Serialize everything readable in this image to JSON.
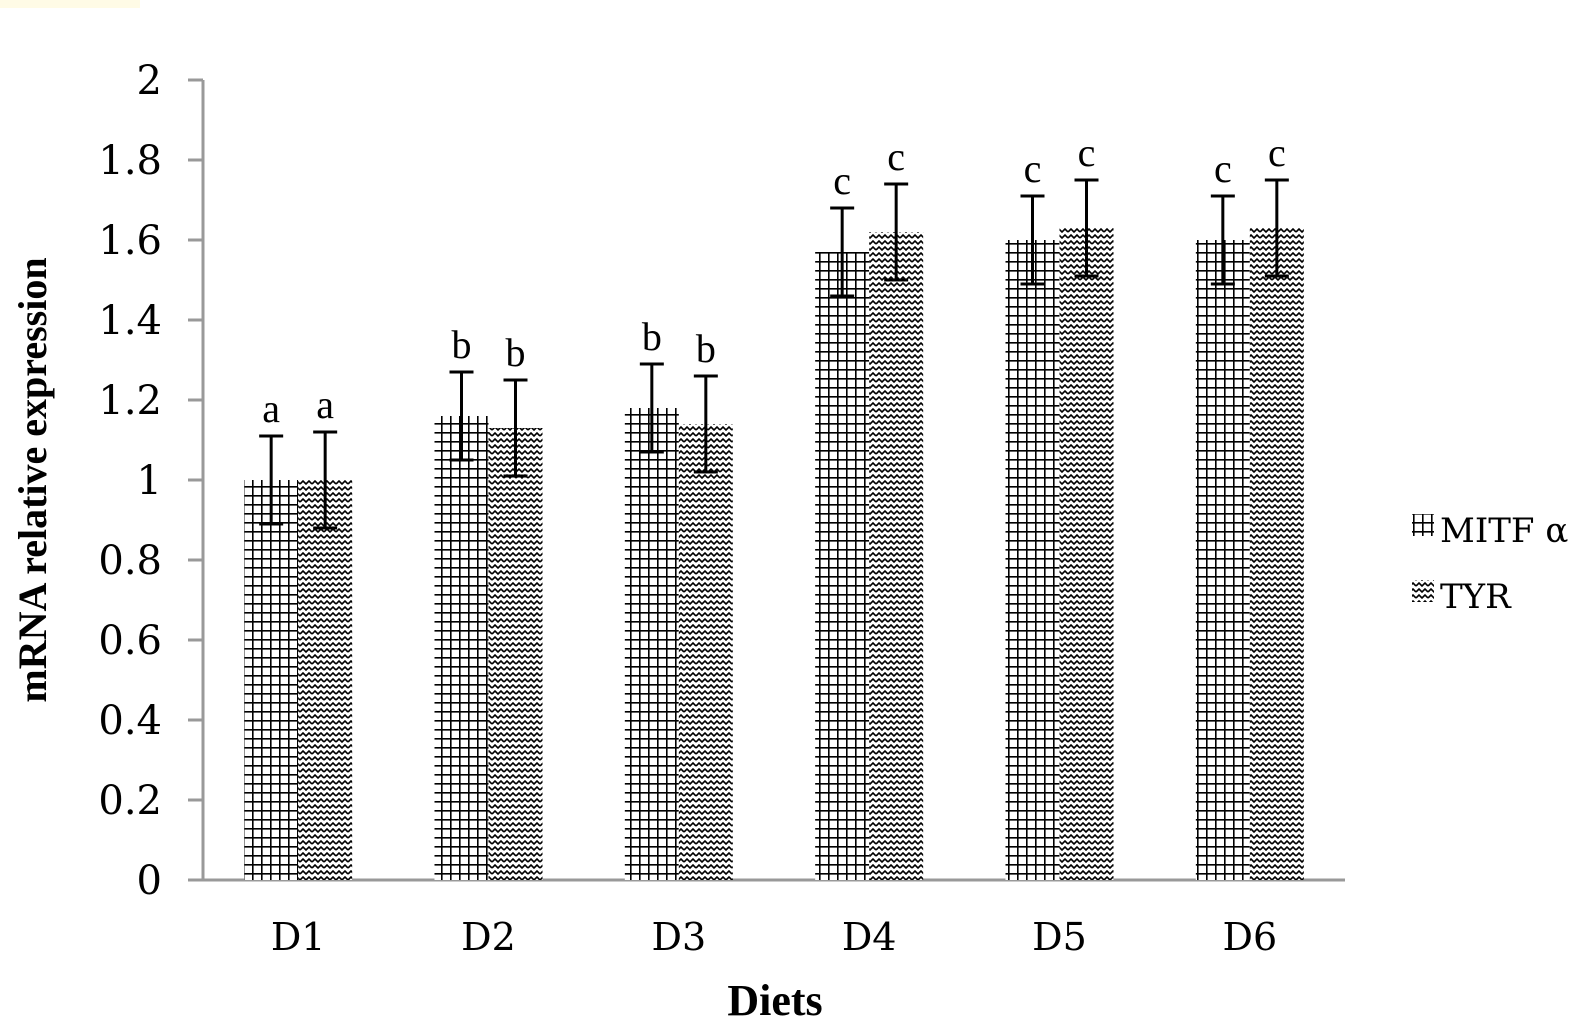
{
  "chart_data": {
    "type": "bar",
    "title": "",
    "xlabel": "Diets",
    "ylabel": "mRNA relative expression",
    "ylim": [
      0,
      2
    ],
    "yticks": [
      "0",
      "0.2",
      "0.4",
      "0.6",
      "0.8",
      "1",
      "1.2",
      "1.4",
      "1.6",
      "1.8",
      "2"
    ],
    "ytick_values": [
      0,
      0.2,
      0.4,
      0.6,
      0.8,
      1,
      1.2,
      1.4,
      1.6,
      1.8,
      2
    ],
    "categories": [
      "D1",
      "D2",
      "D3",
      "D4",
      "D5",
      "D6"
    ],
    "series": [
      {
        "name": "MITF α",
        "pattern": "grid",
        "values": [
          1.0,
          1.16,
          1.18,
          1.57,
          1.6,
          1.6
        ],
        "errors": [
          0.11,
          0.11,
          0.11,
          0.11,
          0.11,
          0.11
        ],
        "letters": [
          "a",
          "b",
          "b",
          "c",
          "c",
          "c"
        ]
      },
      {
        "name": "TYR",
        "pattern": "zigzag",
        "values": [
          1.0,
          1.13,
          1.14,
          1.62,
          1.63,
          1.63
        ],
        "errors": [
          0.12,
          0.12,
          0.12,
          0.12,
          0.12,
          0.12
        ],
        "letters": [
          "a",
          "b",
          "b",
          "c",
          "c",
          "c"
        ]
      }
    ],
    "legend_position": "right",
    "grid": false
  }
}
